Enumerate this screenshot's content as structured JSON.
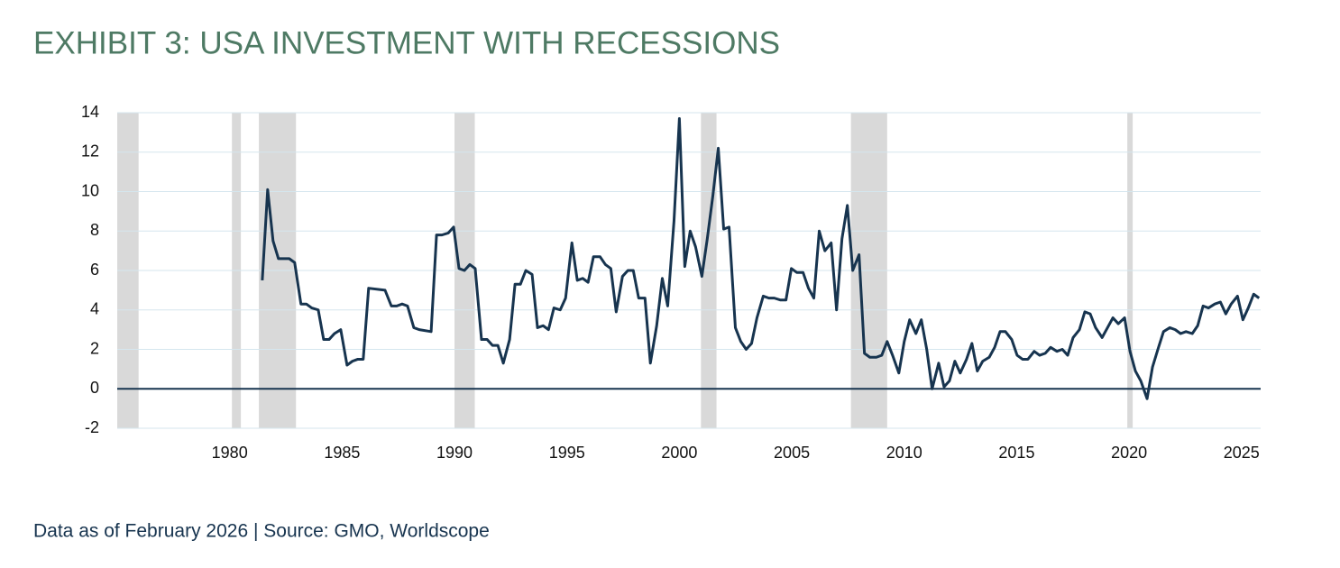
{
  "chart_data": {
    "type": "line",
    "title": "EXHIBIT 3: USA INVESTMENT WITH RECESSIONS",
    "source": "Data as of February 2026 | Source: GMO, Worldscope",
    "color": "#17344f",
    "recession_color": "#d9d9d9",
    "grid": true,
    "zero_line": true,
    "xlim": [
      1975,
      2025.85
    ],
    "xticks": [
      1980,
      1985,
      1990,
      1995,
      2000,
      2005,
      2010,
      2015,
      2020,
      2025
    ],
    "ylim": [
      -2,
      14
    ],
    "yticks": [
      -2,
      0,
      2,
      4,
      6,
      8,
      10,
      12,
      14
    ],
    "recessions": [
      [
        1975,
        1975.95
      ],
      [
        1980.1,
        1980.5
      ],
      [
        1981.3,
        1982.95
      ],
      [
        1990.0,
        1990.9
      ],
      [
        2000.96,
        2001.65
      ],
      [
        2007.63,
        2009.24
      ],
      [
        2019.92,
        2020.16
      ]
    ],
    "x": [
      1981.45,
      1981.69,
      1981.93,
      1982.17,
      1982.65,
      1982.89,
      1983.17,
      1983.41,
      1983.65,
      1983.94,
      1984.18,
      1984.42,
      1984.66,
      1984.94,
      1985.22,
      1985.46,
      1985.7,
      1985.94,
      1986.18,
      1986.91,
      1987.19,
      1987.43,
      1987.67,
      1987.91,
      1988.19,
      1988.43,
      1988.96,
      1989.2,
      1989.44,
      1989.72,
      1989.96,
      1990.2,
      1990.44,
      1990.68,
      1990.92,
      1991.2,
      1991.45,
      1991.69,
      1991.93,
      1992.17,
      1992.45,
      1992.69,
      1992.93,
      1993.17,
      1993.45,
      1993.69,
      1993.94,
      1994.18,
      1994.42,
      1994.7,
      1994.94,
      1995.22,
      1995.46,
      1995.7,
      1995.94,
      1996.18,
      1996.47,
      1996.71,
      1996.95,
      1997.19,
      1997.47,
      1997.71,
      1997.95,
      1998.19,
      1998.47,
      1998.71,
      1998.99,
      1999.24,
      1999.48,
      1999.76,
      2000.0,
      2000.24,
      2000.48,
      2000.72,
      2001.0,
      2001.24,
      2001.49,
      2001.73,
      2001.97,
      2002.21,
      2002.49,
      2002.73,
      2002.97,
      2003.21,
      2003.45,
      2003.73,
      2003.98,
      2004.22,
      2004.5,
      2004.74,
      2004.98,
      2005.22,
      2005.5,
      2005.74,
      2005.98,
      2006.22,
      2006.47,
      2006.75,
      2006.99,
      2007.23,
      2007.47,
      2007.71,
      2007.99,
      2008.23,
      2008.47,
      2008.76,
      2009.0,
      2009.24,
      2009.48,
      2009.76,
      2010.0,
      2010.24,
      2010.52,
      2010.76,
      2011.0,
      2011.24,
      2011.53,
      2011.77,
      2012.01,
      2012.25,
      2012.49,
      2012.77,
      2013.01,
      2013.25,
      2013.49,
      2013.78,
      2014.02,
      2014.26,
      2014.5,
      2014.78,
      2015.02,
      2015.26,
      2015.5,
      2015.78,
      2016.02,
      2016.27,
      2016.51,
      2016.79,
      2017.03,
      2017.27,
      2017.51,
      2017.79,
      2018.03,
      2018.27,
      2018.51,
      2018.8,
      2019.04,
      2019.28,
      2019.52,
      2019.8,
      2020.04,
      2020.28,
      2020.52,
      2020.8,
      2021.04,
      2021.28,
      2021.53,
      2021.81,
      2022.05,
      2022.29,
      2022.53,
      2022.81,
      2023.05,
      2023.29,
      2023.53,
      2023.81,
      2024.06,
      2024.3,
      2024.54,
      2024.82,
      2025.06,
      2025.3,
      2025.54,
      2025.78
    ],
    "values": [
      5.5,
      10.1,
      7.5,
      6.6,
      6.6,
      6.4,
      4.3,
      4.3,
      4.1,
      4.0,
      2.5,
      2.5,
      2.8,
      3.0,
      1.2,
      1.4,
      1.5,
      1.5,
      5.1,
      5.0,
      4.2,
      4.2,
      4.3,
      4.2,
      3.1,
      3.0,
      2.9,
      7.8,
      7.8,
      7.9,
      8.2,
      6.1,
      6.0,
      6.3,
      6.1,
      2.5,
      2.5,
      2.2,
      2.2,
      1.3,
      2.5,
      5.3,
      5.3,
      6.0,
      5.8,
      3.1,
      3.2,
      3.0,
      4.1,
      4.0,
      4.6,
      7.4,
      5.5,
      5.6,
      5.4,
      6.7,
      6.7,
      6.3,
      6.1,
      3.9,
      5.7,
      6.0,
      6.0,
      4.6,
      4.6,
      1.3,
      3.2,
      5.6,
      4.2,
      8.5,
      13.7,
      6.2,
      8.0,
      7.2,
      5.7,
      7.6,
      9.8,
      12.2,
      8.1,
      8.2,
      3.1,
      2.4,
      2.0,
      2.3,
      3.6,
      4.7,
      4.6,
      4.6,
      4.5,
      4.5,
      6.1,
      5.9,
      5.9,
      5.1,
      4.6,
      8.0,
      7.0,
      7.4,
      4.0,
      7.6,
      9.3,
      6.0,
      6.8,
      1.8,
      1.6,
      1.6,
      1.7,
      2.4,
      1.7,
      0.8,
      2.4,
      3.5,
      2.8,
      3.5,
      2.0,
      0.0,
      1.3,
      0.1,
      0.4,
      1.4,
      0.8,
      1.5,
      2.3,
      0.9,
      1.4,
      1.6,
      2.1,
      2.9,
      2.9,
      2.5,
      1.7,
      1.5,
      1.5,
      1.9,
      1.7,
      1.8,
      2.1,
      1.9,
      2.0,
      1.7,
      2.6,
      3.0,
      3.9,
      3.8,
      3.1,
      2.6,
      3.1,
      3.6,
      3.3,
      3.6,
      1.9,
      0.9,
      0.4,
      -0.5,
      1.1,
      2.0,
      2.9,
      3.1,
      3.0,
      2.8,
      2.9,
      2.8,
      3.2,
      4.2,
      4.1,
      4.3,
      4.4,
      3.8,
      4.3,
      4.7,
      3.5,
      4.1,
      4.8,
      4.6
    ]
  }
}
